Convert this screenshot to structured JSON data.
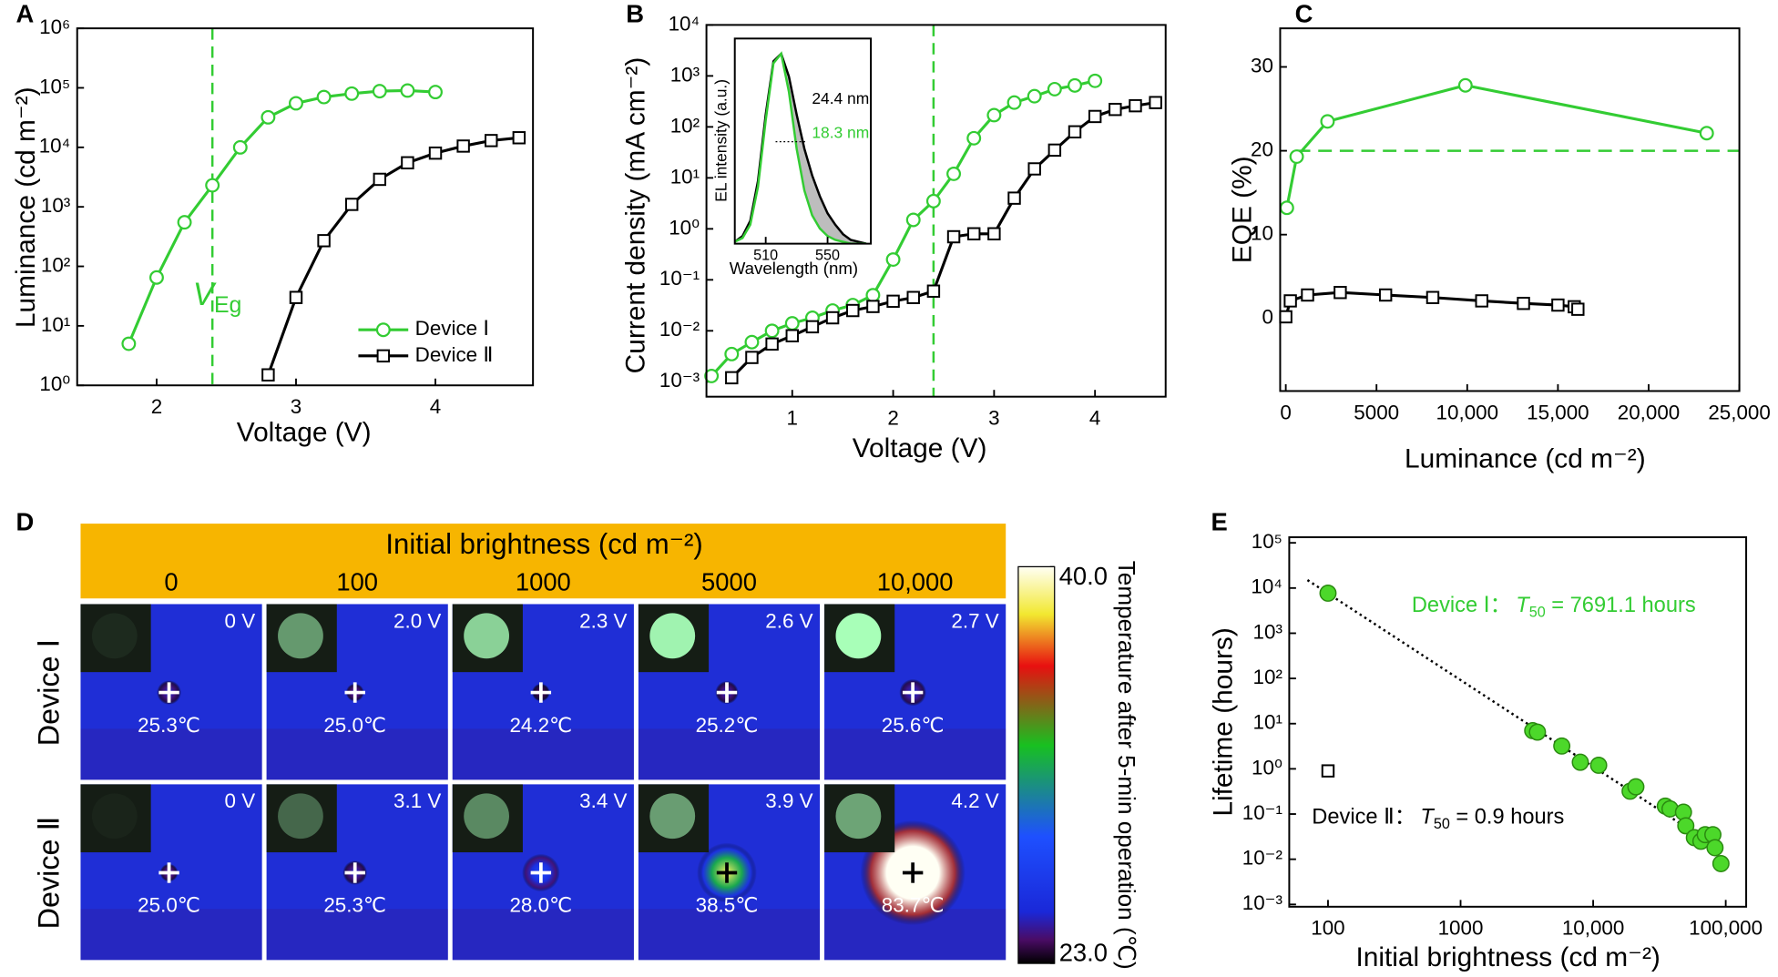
{
  "chart_data": [
    {
      "panel": "A",
      "type": "line",
      "x_label": "Voltage (V)",
      "y_label": "Luminance (cd m⁻²)",
      "log_y": true,
      "xlim": [
        1.43,
        4.7
      ],
      "ylim": [
        1,
        1000000
      ],
      "xticks": [
        2,
        3,
        4
      ],
      "yticks": [
        {
          "value": 1,
          "label": "10⁰"
        },
        {
          "value": 10,
          "label": "10¹"
        },
        {
          "value": 100,
          "label": "10²"
        },
        {
          "value": 1000,
          "label": "10³"
        },
        {
          "value": 10000,
          "label": "10⁴"
        },
        {
          "value": 100000,
          "label": "10⁵"
        },
        {
          "value": 1000000,
          "label": "10⁶"
        }
      ],
      "vline": 2.4,
      "vline_label": {
        "main": "V",
        "sub": "Eg"
      },
      "legend": "lower right",
      "series": [
        {
          "name": "Device Ⅰ",
          "color": "#33cc33",
          "marker": "circle",
          "x": [
            1.8,
            2.0,
            2.2,
            2.4,
            2.6,
            2.8,
            3.0,
            3.2,
            3.4,
            3.6,
            3.8,
            4.0
          ],
          "values": [
            5,
            65,
            550,
            2300,
            10000,
            32000,
            55000,
            70000,
            80000,
            88000,
            90000,
            85000
          ]
        },
        {
          "name": "Device Ⅱ",
          "color": "#000000",
          "marker": "square",
          "x": [
            2.8,
            3.0,
            3.2,
            3.4,
            3.6,
            3.8,
            4.0,
            4.2,
            4.4,
            4.6
          ],
          "values": [
            1.5,
            30,
            270,
            1100,
            2900,
            5500,
            8000,
            10500,
            13000,
            14500
          ]
        }
      ]
    },
    {
      "panel": "B",
      "type": "line",
      "x_label": "Voltage (V)",
      "y_label": "Current density (mA cm⁻²)",
      "log_y": true,
      "xlim": [
        0.15,
        4.7
      ],
      "ylim": [
        0.00051,
        10000
      ],
      "xticks": [
        1,
        2,
        3,
        4
      ],
      "yticks": [
        {
          "value": 0.001,
          "label": "10⁻³"
        },
        {
          "value": 0.01,
          "label": "10⁻²"
        },
        {
          "value": 0.1,
          "label": "10⁻¹"
        },
        {
          "value": 1,
          "label": "10⁰"
        },
        {
          "value": 10,
          "label": "10¹"
        },
        {
          "value": 100,
          "label": "10²"
        },
        {
          "value": 1000,
          "label": "10³"
        },
        {
          "value": 10000,
          "label": "10⁴"
        }
      ],
      "vline": 2.4,
      "series": [
        {
          "color": "#33cc33",
          "marker": "circle",
          "x": [
            0.2,
            0.4,
            0.6,
            0.8,
            1.0,
            1.2,
            1.4,
            1.6,
            1.8,
            2.0,
            2.2,
            2.4,
            2.6,
            2.8,
            3.0,
            3.2,
            3.4,
            3.6,
            3.8,
            4.0
          ],
          "values": [
            0.0013,
            0.0035,
            0.006,
            0.01,
            0.014,
            0.018,
            0.025,
            0.032,
            0.05,
            0.25,
            1.5,
            3.5,
            12,
            60,
            170,
            300,
            400,
            550,
            650,
            800
          ]
        },
        {
          "color": "#000000",
          "marker": "square",
          "x": [
            0.4,
            0.6,
            0.8,
            1.0,
            1.2,
            1.4,
            1.6,
            1.8,
            2.0,
            2.2,
            2.4,
            2.6,
            2.8,
            3.0,
            3.2,
            3.4,
            3.6,
            3.8,
            4.0,
            4.2,
            4.4,
            4.6
          ],
          "values": [
            0.0012,
            0.003,
            0.0055,
            0.008,
            0.012,
            0.018,
            0.025,
            0.03,
            0.038,
            0.045,
            0.06,
            0.7,
            0.8,
            0.8,
            4,
            15,
            35,
            80,
            160,
            220,
            260,
            300
          ]
        }
      ],
      "inset": {
        "type": "line",
        "x_label": "Wavelength (nm)",
        "y_label": "EL intensity (a.u.)",
        "xlim": [
          490,
          578
        ],
        "ylim": [
          0,
          1.08
        ],
        "xticks": [
          510,
          550
        ],
        "annotations": [
          "24.4 nm",
          "18.3 nm"
        ],
        "series": [
          {
            "color": "#000000",
            "fill": "#bdbdbd",
            "x": [
              490,
              495,
              500,
              505,
              510,
              515,
              520,
              525,
              530,
              535,
              540,
              545,
              550,
              555,
              560,
              565,
              570,
              575
            ],
            "values": [
              0.01,
              0.04,
              0.12,
              0.33,
              0.68,
              0.96,
              1.0,
              0.88,
              0.68,
              0.5,
              0.36,
              0.25,
              0.16,
              0.1,
              0.05,
              0.02,
              0.01,
              0
            ]
          },
          {
            "color": "#33cc33",
            "fill": "#ffffff",
            "x": [
              490,
              495,
              500,
              505,
              510,
              515,
              520,
              525,
              530,
              535,
              540,
              545,
              550,
              555,
              560,
              565,
              570,
              575
            ],
            "values": [
              0.01,
              0.03,
              0.1,
              0.3,
              0.65,
              0.95,
              1.0,
              0.8,
              0.5,
              0.28,
              0.15,
              0.08,
              0.04,
              0.02,
              0.01,
              0,
              0,
              0
            ]
          }
        ]
      }
    },
    {
      "panel": "C",
      "type": "line",
      "x_label": "Luminance (cd m⁻²)",
      "y_label": "EQE (%)",
      "xlim": [
        -310,
        25000
      ],
      "ylim": [
        -8.65,
        34.6
      ],
      "xticks": [
        0,
        5000,
        {
          "value": 10000,
          "label": "10,000"
        },
        {
          "value": 15000,
          "label": "15,000"
        },
        {
          "value": 20000,
          "label": "20,000"
        },
        {
          "value": 25000,
          "label": "25,000"
        }
      ],
      "yticks": [
        0,
        10,
        20,
        30
      ],
      "hline": 20,
      "series": [
        {
          "color": "#33cc33",
          "marker": "circle",
          "x": [
            60,
            600,
            2300,
            9900,
            23200
          ],
          "values": [
            13.2,
            19.3,
            23.5,
            27.8,
            22.1
          ]
        },
        {
          "color": "#000000",
          "marker": "square",
          "x": [
            0,
            250,
            1200,
            3000,
            5500,
            8100,
            10800,
            13100,
            15000,
            15900,
            16100
          ],
          "values": [
            0.2,
            2.1,
            2.8,
            3.1,
            2.8,
            2.5,
            2.1,
            1.8,
            1.6,
            1.4,
            1.1
          ]
        }
      ]
    },
    {
      "panel": "D",
      "type": "thermal-images",
      "title": "Initial brightness (cd m⁻²)",
      "columns": [
        "0",
        "100",
        "1000",
        "5000",
        "10,000"
      ],
      "rows": [
        {
          "name": "Device Ⅰ",
          "voltage_labels": [
            "0 V",
            "2.0 V",
            "2.3 V",
            "2.6 V",
            "2.7 V"
          ],
          "temperatures": [
            25.3,
            25.0,
            24.2,
            25.2,
            25.6
          ],
          "temperature_labels": [
            "25.3℃",
            "25.0℃",
            "24.2℃",
            "25.2℃",
            "25.6℃"
          ]
        },
        {
          "name": "Device Ⅱ",
          "voltage_labels": [
            "0 V",
            "3.1 V",
            "3.4 V",
            "3.9 V",
            "4.2 V"
          ],
          "temperatures": [
            25.0,
            25.3,
            28.0,
            38.5,
            83.7
          ],
          "temperature_labels": [
            "25.0℃",
            "25.3℃",
            "28.0℃",
            "38.5℃",
            "83.7℃"
          ]
        }
      ],
      "colorbar": {
        "label": "Temperature after 5-min operation (℃)",
        "clim": [
          23,
          40
        ],
        "ticks": [
          {
            "value": 40,
            "label": "40.0"
          },
          {
            "value": 23,
            "label": "23.0"
          }
        ]
      }
    },
    {
      "panel": "E",
      "type": "scatter",
      "x_label": "Initial brightness (cd m⁻²)",
      "y_label": "Lifetime (hours)",
      "log_x": true,
      "log_y": true,
      "xlim": [
        51,
        142600
      ],
      "ylim": [
        0.00089,
        133000
      ],
      "xticks": [
        100,
        1000,
        {
          "value": 10000,
          "label": "10,000"
        },
        {
          "value": 100000,
          "label": "100,000"
        }
      ],
      "yticks": [
        {
          "value": 0.001,
          "label": "10⁻³"
        },
        {
          "value": 0.01,
          "label": "10⁻²"
        },
        {
          "value": 0.1,
          "label": "10⁻¹"
        },
        {
          "value": 1,
          "label": "10⁰"
        },
        {
          "value": 10,
          "label": "10¹"
        },
        {
          "value": 100,
          "label": "10²"
        },
        {
          "value": 1000,
          "label": "10³"
        },
        {
          "value": 10000,
          "label": "10⁴"
        },
        {
          "value": 100000,
          "label": "10⁵"
        }
      ],
      "fit": {
        "x": [
          70,
          95000
        ],
        "values": [
          15000,
          0.015
        ]
      },
      "series": [
        {
          "color": "#4cd82a",
          "marker": "dot",
          "x": [
            100,
            3500,
            3800,
            5800,
            8000,
            11000,
            19000,
            21000,
            35000,
            38000,
            48000,
            50000,
            58000,
            65000,
            70000,
            80000,
            83000,
            92000
          ],
          "values": [
            7691.1,
            7,
            6.5,
            3.2,
            1.4,
            1.2,
            0.32,
            0.4,
            0.15,
            0.13,
            0.11,
            0.055,
            0.03,
            0.025,
            0.035,
            0.035,
            0.018,
            0.008
          ]
        },
        {
          "color": "#000000",
          "marker": "square",
          "x": [
            100
          ],
          "values": [
            0.9
          ]
        }
      ],
      "annotations": [
        {
          "color": "#33cc33",
          "prefix": "Device Ⅰ：",
          "symbol": "T",
          "sub": "50",
          "suffix": " = 7691.1 hours"
        },
        {
          "color": "#000000",
          "prefix": "Device Ⅱ：",
          "symbol": "T",
          "sub": "50",
          "suffix": " = 0.9 hours"
        }
      ]
    }
  ]
}
